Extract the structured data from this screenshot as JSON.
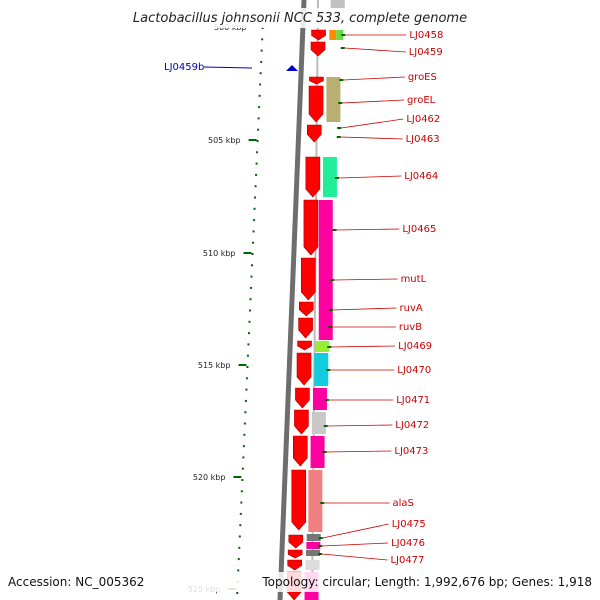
{
  "title": "Lactobacillus johnsonii NCC 533, complete genome",
  "accession": "Accession: NC_005362",
  "topology": "Topology: circular; Length: 1,992,676 bp; Genes: 1,918",
  "top_scale_label": "500 kbp",
  "scale_labels": [
    "505 kbp",
    "510 kbp",
    "515 kbp",
    "520 kbp",
    "525 kbp"
  ],
  "marker": {
    "label": "LJ0459b",
    "color": "#0000cc"
  },
  "colors": {
    "gene_arrow": "#ff0000",
    "gene_label": "#cc0000",
    "backbone": "#888888",
    "tick": "#006600"
  },
  "genes": [
    {
      "label": "LJ0458",
      "color": "#ff8c00"
    },
    {
      "label": "LJ0459",
      "color": "#ff5050"
    },
    {
      "label": "groES",
      "color": "#b8b070"
    },
    {
      "label": "groEL",
      "color": "#b8b070"
    },
    {
      "label": "LJ0462",
      "color": "#ffffff"
    },
    {
      "label": "LJ0463",
      "color": "#ffffff"
    },
    {
      "label": "LJ0464",
      "color": "#22ee99"
    },
    {
      "label": "LJ0465",
      "color": "#ff00a0"
    },
    {
      "label": "mutL",
      "color": "#ff00a0"
    },
    {
      "label": "ruvA",
      "color": "#ff00a0"
    },
    {
      "label": "ruvB",
      "color": "#ff00a0"
    },
    {
      "label": "LJ0469",
      "color": "#99ee33"
    },
    {
      "label": "LJ0470",
      "color": "#11ccdd"
    },
    {
      "label": "LJ0471",
      "color": "#ff00a0"
    },
    {
      "label": "LJ0472",
      "color": "#c8c8c8"
    },
    {
      "label": "LJ0473",
      "color": "#ff00a0"
    },
    {
      "label": "alaS",
      "color": "#f08080"
    },
    {
      "label": "LJ0475",
      "color": "#888888"
    },
    {
      "label": "LJ0476",
      "color": "#ff00a0"
    },
    {
      "label": "LJ0477",
      "color": "#888888"
    }
  ]
}
